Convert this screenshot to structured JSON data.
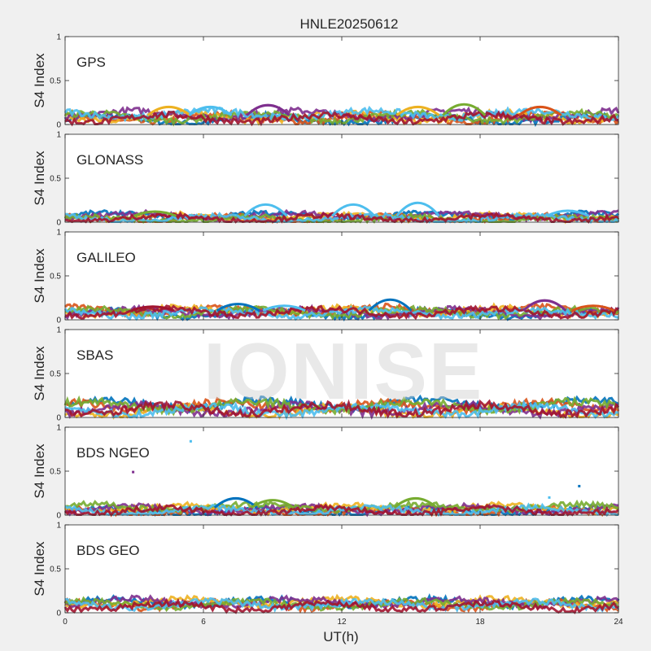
{
  "chart_data": {
    "type": "scatter",
    "title": "HNLE20250612",
    "xlabel": "UT(h)",
    "ylabel": "S4 Index",
    "xlim": [
      0,
      24
    ],
    "ylim": [
      0,
      1
    ],
    "xticks": [
      0,
      6,
      12,
      18,
      24
    ],
    "yticks": [
      0,
      0.5,
      1
    ],
    "xtick_labels": [
      "0",
      "6",
      "12",
      "18",
      "24"
    ],
    "ytick_labels": [
      "0",
      "0.5",
      "1"
    ],
    "grid": false,
    "legend": "none",
    "watermark": "IONISE",
    "series_colors": [
      "#0072bd",
      "#d95319",
      "#edb120",
      "#7e2f8e",
      "#77ac30",
      "#4dbeee",
      "#a2142f"
    ],
    "panels": [
      {
        "name": "GPS",
        "typical_range": [
          0.03,
          0.15
        ],
        "peaks": [
          {
            "x": 4.5,
            "y": 0.2,
            "color": "#edb120"
          },
          {
            "x": 6.3,
            "y": 0.2,
            "color": "#4dbeee"
          },
          {
            "x": 8.8,
            "y": 0.22,
            "color": "#7e2f8e"
          },
          {
            "x": 15.3,
            "y": 0.2,
            "color": "#edb120"
          },
          {
            "x": 17.3,
            "y": 0.23,
            "color": "#77ac30"
          },
          {
            "x": 20.6,
            "y": 0.2,
            "color": "#d95319"
          }
        ],
        "outliers": []
      },
      {
        "name": "GLONASS",
        "typical_range": [
          0.01,
          0.1
        ],
        "peaks": [
          {
            "x": 8.7,
            "y": 0.2,
            "color": "#4dbeee"
          },
          {
            "x": 12.5,
            "y": 0.2,
            "color": "#4dbeee"
          },
          {
            "x": 15.3,
            "y": 0.22,
            "color": "#4dbeee"
          },
          {
            "x": 3.9,
            "y": 0.12,
            "color": "#77ac30"
          },
          {
            "x": 21.8,
            "y": 0.13,
            "color": "#4dbeee"
          }
        ],
        "outliers": []
      },
      {
        "name": "GALILEO",
        "typical_range": [
          0.04,
          0.15
        ],
        "peaks": [
          {
            "x": 7.5,
            "y": 0.18,
            "color": "#0072bd"
          },
          {
            "x": 9.5,
            "y": 0.16,
            "color": "#4dbeee"
          },
          {
            "x": 14.1,
            "y": 0.23,
            "color": "#0072bd"
          },
          {
            "x": 20.8,
            "y": 0.22,
            "color": "#7e2f8e"
          },
          {
            "x": 3.8,
            "y": 0.15,
            "color": "#a2142f"
          },
          {
            "x": 22.9,
            "y": 0.16,
            "color": "#d95319"
          }
        ],
        "outliers": []
      },
      {
        "name": "SBAS",
        "typical_range": [
          0.04,
          0.18
        ],
        "peaks": [],
        "outliers": []
      },
      {
        "name": "BDS NGEO",
        "typical_range": [
          0.02,
          0.12
        ],
        "peaks": [
          {
            "x": 7.4,
            "y": 0.19,
            "color": "#0072bd"
          },
          {
            "x": 15.2,
            "y": 0.19,
            "color": "#77ac30"
          },
          {
            "x": 9.0,
            "y": 0.17,
            "color": "#77ac30"
          }
        ],
        "outliers": [
          {
            "x": 5.45,
            "y": 0.84,
            "color": "#4dbeee"
          },
          {
            "x": 2.95,
            "y": 0.49,
            "color": "#7e2f8e"
          },
          {
            "x": 22.3,
            "y": 0.33,
            "color": "#0072bd"
          },
          {
            "x": 21.0,
            "y": 0.2,
            "color": "#4dbeee"
          }
        ]
      },
      {
        "name": "BDS GEO",
        "typical_range": [
          0.04,
          0.15
        ],
        "peaks": [],
        "outliers": []
      }
    ]
  }
}
